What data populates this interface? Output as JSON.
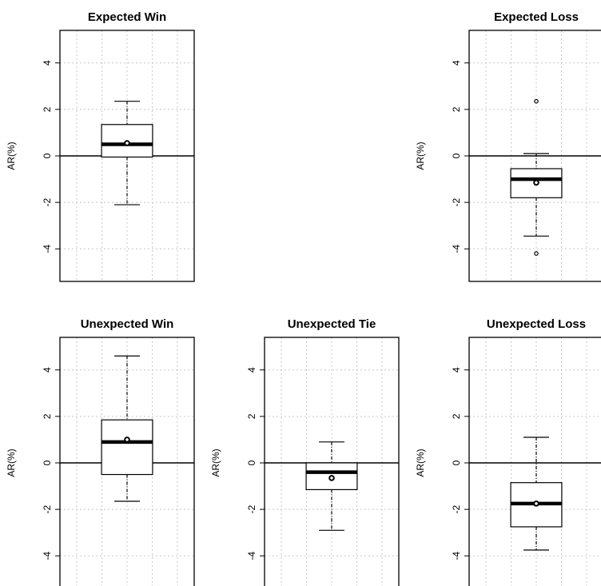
{
  "chart_data": [
    {
      "type": "boxplot",
      "title": "Expected Win",
      "ylabel": "AR(%)",
      "ylim": [
        -5.4,
        5.4
      ],
      "yticks": [
        4,
        2,
        0,
        -2,
        -4
      ],
      "yticklabels": [
        "4",
        "2",
        "0",
        "-2",
        "-4"
      ],
      "grid": true,
      "reference_line": 0,
      "box": {
        "whisker_low": -2.1,
        "q1": -0.05,
        "median": 0.5,
        "q3": 1.35,
        "whisker_high": 2.35,
        "mean": 0.55,
        "outliers": []
      }
    },
    {
      "type": "boxplot",
      "title": "Expected Loss",
      "ylabel": "AR(%)",
      "ylim": [
        -5.4,
        5.4
      ],
      "yticks": [
        4,
        2,
        0,
        -2,
        -4
      ],
      "yticklabels": [
        "4",
        "2",
        "0",
        "-2",
        "-4"
      ],
      "grid": true,
      "reference_line": 0,
      "box": {
        "whisker_low": -3.45,
        "q1": -1.8,
        "median": -1.0,
        "q3": -0.55,
        "whisker_high": 0.1,
        "mean": -1.15,
        "outliers": [
          2.35,
          -4.2
        ]
      }
    },
    {
      "type": "boxplot",
      "title": "Unexpected Win",
      "ylabel": "AR(%)",
      "ylim": [
        -5.4,
        5.4
      ],
      "yticks": [
        4,
        2,
        0,
        -2,
        -4
      ],
      "yticklabels": [
        "4",
        "2",
        "0",
        "-2",
        "-4"
      ],
      "grid": true,
      "reference_line": 0,
      "box": {
        "whisker_low": -1.65,
        "q1": -0.5,
        "median": 0.9,
        "q3": 1.85,
        "whisker_high": 4.6,
        "mean": 1.0,
        "outliers": []
      }
    },
    {
      "type": "boxplot",
      "title": "Unexpected Tie",
      "ylabel": "AR(%)",
      "ylim": [
        -5.4,
        5.4
      ],
      "yticks": [
        4,
        2,
        0,
        -2,
        -4
      ],
      "yticklabels": [
        "4",
        "2",
        "0",
        "-2",
        "-4"
      ],
      "grid": true,
      "reference_line": 0,
      "box": {
        "whisker_low": -2.9,
        "q1": -1.15,
        "median": -0.4,
        "q3": 0.0,
        "whisker_high": 0.9,
        "mean": -0.65,
        "outliers": []
      }
    },
    {
      "type": "boxplot",
      "title": "Unexpected Loss",
      "ylabel": "AR(%)",
      "ylim": [
        -5.4,
        5.4
      ],
      "yticks": [
        4,
        2,
        0,
        -2,
        -4
      ],
      "yticklabels": [
        "4",
        "2",
        "0",
        "-2",
        "-4"
      ],
      "grid": true,
      "reference_line": 0,
      "box": {
        "whisker_low": -3.75,
        "q1": -2.75,
        "median": -1.75,
        "q3": -0.85,
        "whisker_high": 1.1,
        "mean": -1.75,
        "outliers": []
      }
    }
  ],
  "colors": {
    "background": "#ffffff",
    "ink": "#000000",
    "grid": "#c8c8c8"
  }
}
